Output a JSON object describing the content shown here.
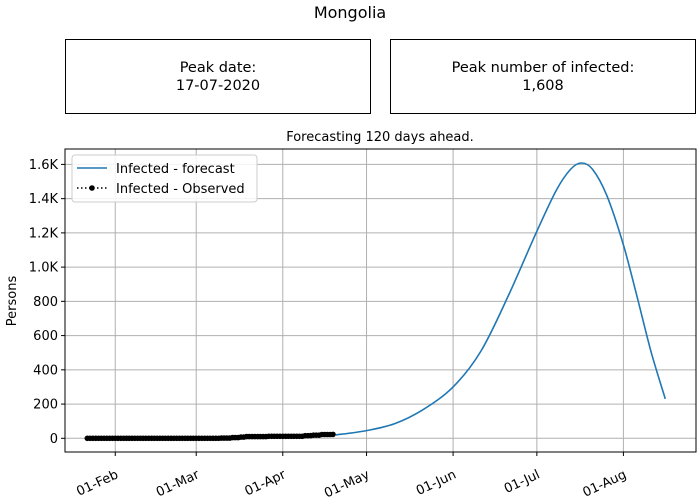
{
  "figure": {
    "title": "Mongolia",
    "peak_date_label": "Peak date:",
    "peak_date_value": "17-07-2020",
    "peak_number_label": "Peak number of infected:",
    "peak_number_value": "1,608"
  },
  "chart_data": {
    "type": "line",
    "title": "Forecasting 120 days ahead.",
    "xlabel": "",
    "ylabel": "Persons",
    "x_ticks": [
      "01-Feb",
      "01-Mar",
      "01-Apr",
      "01-May",
      "01-Jun",
      "01-Jul",
      "01-Aug"
    ],
    "y_ticks": [
      "0",
      "200",
      "400",
      "600",
      "800",
      "1.0K",
      "1.2K",
      "1.4K",
      "1.6K"
    ],
    "x_range": [
      "2020-01-14",
      "2020-08-27"
    ],
    "y_range": [
      -80,
      1690
    ],
    "grid": true,
    "legend_position": "top-left",
    "series": [
      {
        "name": "Infected - forecast",
        "color": "#1f77b4",
        "style": "solid",
        "points": [
          [
            "2020-04-20",
            20
          ],
          [
            "2020-05-01",
            45
          ],
          [
            "2020-05-11",
            85
          ],
          [
            "2020-05-21",
            165
          ],
          [
            "2020-06-01",
            300
          ],
          [
            "2020-06-11",
            510
          ],
          [
            "2020-06-21",
            840
          ],
          [
            "2020-07-01",
            1210
          ],
          [
            "2020-07-08",
            1450
          ],
          [
            "2020-07-13",
            1570
          ],
          [
            "2020-07-17",
            1608
          ],
          [
            "2020-07-21",
            1570
          ],
          [
            "2020-07-26",
            1420
          ],
          [
            "2020-08-01",
            1130
          ],
          [
            "2020-08-06",
            820
          ],
          [
            "2020-08-11",
            500
          ],
          [
            "2020-08-16",
            230
          ]
        ]
      },
      {
        "name": "Infected - Observed",
        "color": "#000000",
        "style": "dotted-markers",
        "points": [
          [
            "2020-01-22",
            0
          ],
          [
            "2020-03-09",
            0
          ],
          [
            "2020-03-10",
            1
          ],
          [
            "2020-03-14",
            4
          ],
          [
            "2020-03-17",
            7
          ],
          [
            "2020-03-19",
            10
          ],
          [
            "2020-03-27",
            12
          ],
          [
            "2020-04-09",
            15
          ],
          [
            "2020-04-11",
            16
          ],
          [
            "2020-04-12",
            18
          ],
          [
            "2020-04-15",
            22
          ],
          [
            "2020-04-19",
            23
          ]
        ]
      }
    ]
  }
}
